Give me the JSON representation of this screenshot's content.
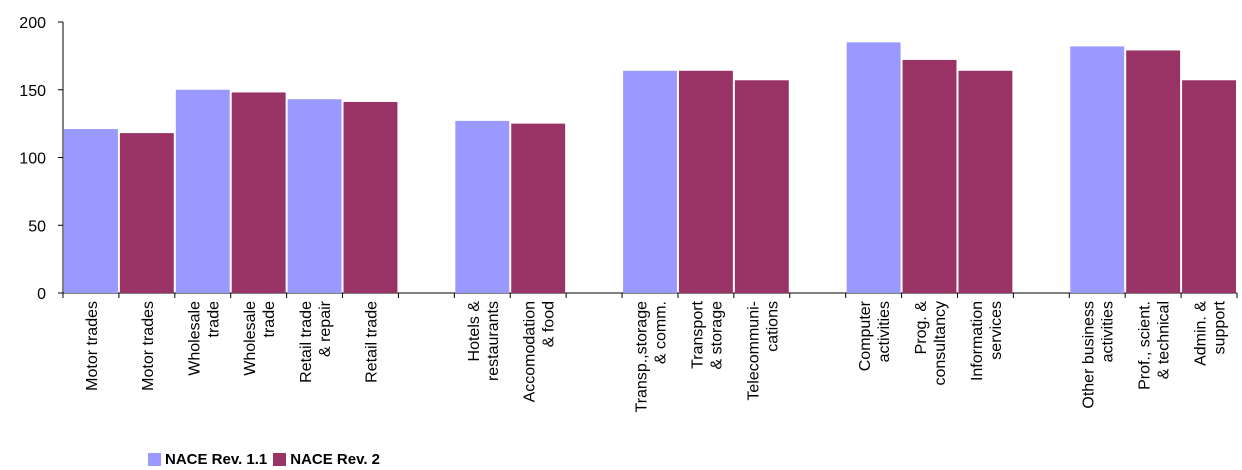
{
  "chart_data": {
    "type": "bar",
    "title": "",
    "xlabel": "",
    "ylabel": "",
    "ylim": [
      0,
      200
    ],
    "yticks": [
      0,
      50,
      100,
      150,
      200
    ],
    "grid": false,
    "legend_position": "bottom-left",
    "series": [
      {
        "name": "NACE Rev. 1.1",
        "color": "#9999ff"
      },
      {
        "name": "NACE Rev. 2",
        "color": "#993366"
      }
    ],
    "bars": [
      {
        "label": "Motor trades",
        "series": 0,
        "value": 121
      },
      {
        "label": "Motor trades",
        "series": 1,
        "value": 118
      },
      {
        "label": "Wholesale trade",
        "series": 0,
        "value": 150
      },
      {
        "label": "Wholesale trade",
        "series": 1,
        "value": 148
      },
      {
        "label": "Retail trade & repair",
        "series": 0,
        "value": 143
      },
      {
        "label": "Retail trade",
        "series": 1,
        "value": 141
      },
      {
        "label": "",
        "series": null,
        "value": null
      },
      {
        "label": "Hotels & restaurants",
        "series": 0,
        "value": 127
      },
      {
        "label": "Accomodation & food",
        "series": 1,
        "value": 125
      },
      {
        "label": "",
        "series": null,
        "value": null
      },
      {
        "label": "Transp.,storage & comm.",
        "series": 0,
        "value": 164
      },
      {
        "label": "Transport & storage",
        "series": 1,
        "value": 164
      },
      {
        "label": "Telecommuni-cations",
        "series": 1,
        "value": 157
      },
      {
        "label": "",
        "series": null,
        "value": null
      },
      {
        "label": "Computer activities",
        "series": 0,
        "value": 185
      },
      {
        "label": "Prog. & consultancy",
        "series": 1,
        "value": 172
      },
      {
        "label": "Information services",
        "series": 1,
        "value": 164
      },
      {
        "label": "",
        "series": null,
        "value": null
      },
      {
        "label": "Other business activities",
        "series": 0,
        "value": 182
      },
      {
        "label": "Prof., scient. & technical",
        "series": 1,
        "value": 179
      },
      {
        "label": "Admin. & support",
        "series": 1,
        "value": 157
      }
    ]
  },
  "tick_label_lines": [
    [
      "Motor trades"
    ],
    [
      "Motor trades"
    ],
    [
      "Wholesale",
      "trade"
    ],
    [
      "Wholesale",
      "trade"
    ],
    [
      "Retail trade",
      "& repair"
    ],
    [
      "Retail trade"
    ],
    [],
    [
      "Hotels &",
      "restaurants"
    ],
    [
      "Accomodation",
      "& food"
    ],
    [],
    [
      "Transp.,storage",
      "& comm."
    ],
    [
      "Transport",
      "& storage"
    ],
    [
      "Telecommuni-",
      "cations"
    ],
    [],
    [
      "Computer",
      "activities"
    ],
    [
      "Prog. &",
      "consultancy"
    ],
    [
      "Information",
      "services"
    ],
    [],
    [
      "Other business",
      "activities"
    ],
    [
      "Prof., scient.",
      "& technical"
    ],
    [
      "Admin. &",
      "support"
    ]
  ],
  "legend": {
    "items": [
      {
        "label": "NACE Rev. 1.1",
        "color": "#9999ff"
      },
      {
        "label": "NACE Rev. 2",
        "color": "#993366"
      }
    ]
  }
}
